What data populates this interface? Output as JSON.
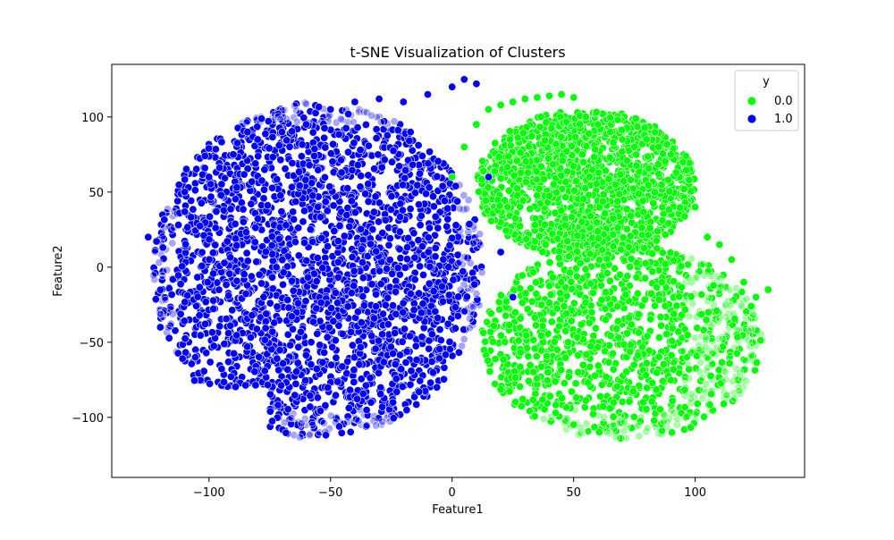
{
  "chart_data": {
    "type": "scatter",
    "title": "t-SNE Visualization of Clusters",
    "xlabel": "Feature1",
    "ylabel": "Feature2",
    "xlim": [
      -140,
      145
    ],
    "ylim": [
      -140,
      135
    ],
    "xticks": [
      -100,
      -50,
      0,
      50,
      100
    ],
    "yticks": [
      -100,
      -50,
      0,
      50,
      100
    ],
    "grid": false,
    "legend": {
      "title": "y",
      "position": "top-right",
      "entries": [
        {
          "label": "0.0",
          "color": "#00ff00"
        },
        {
          "label": "1.0",
          "color": "#0000ff"
        }
      ]
    },
    "series": [
      {
        "name": "0.0",
        "color": "#00ff00",
        "x": [
          0,
          5,
          10,
          15,
          20,
          25,
          30,
          35,
          40,
          45,
          50,
          55,
          60,
          65,
          70,
          75,
          80,
          85,
          90,
          95,
          100,
          105,
          110,
          115,
          120,
          125,
          130
        ],
        "y": [
          60,
          80,
          95,
          105,
          108,
          110,
          112,
          113,
          114,
          115,
          113,
          100,
          95,
          90,
          85,
          80,
          85,
          80,
          75,
          70,
          40,
          20,
          15,
          5,
          -10,
          -20,
          -15
        ]
      },
      {
        "name": "1.0",
        "color": "#0000ff",
        "x": [
          -125,
          -120,
          -110,
          -100,
          -90,
          -80,
          -70,
          -60,
          -50,
          -40,
          -30,
          -20,
          -10,
          0,
          5,
          10,
          15,
          20,
          25
        ],
        "y": [
          20,
          -40,
          50,
          60,
          75,
          85,
          90,
          95,
          105,
          110,
          112,
          110,
          115,
          120,
          125,
          122,
          60,
          10,
          -20
        ]
      }
    ]
  }
}
